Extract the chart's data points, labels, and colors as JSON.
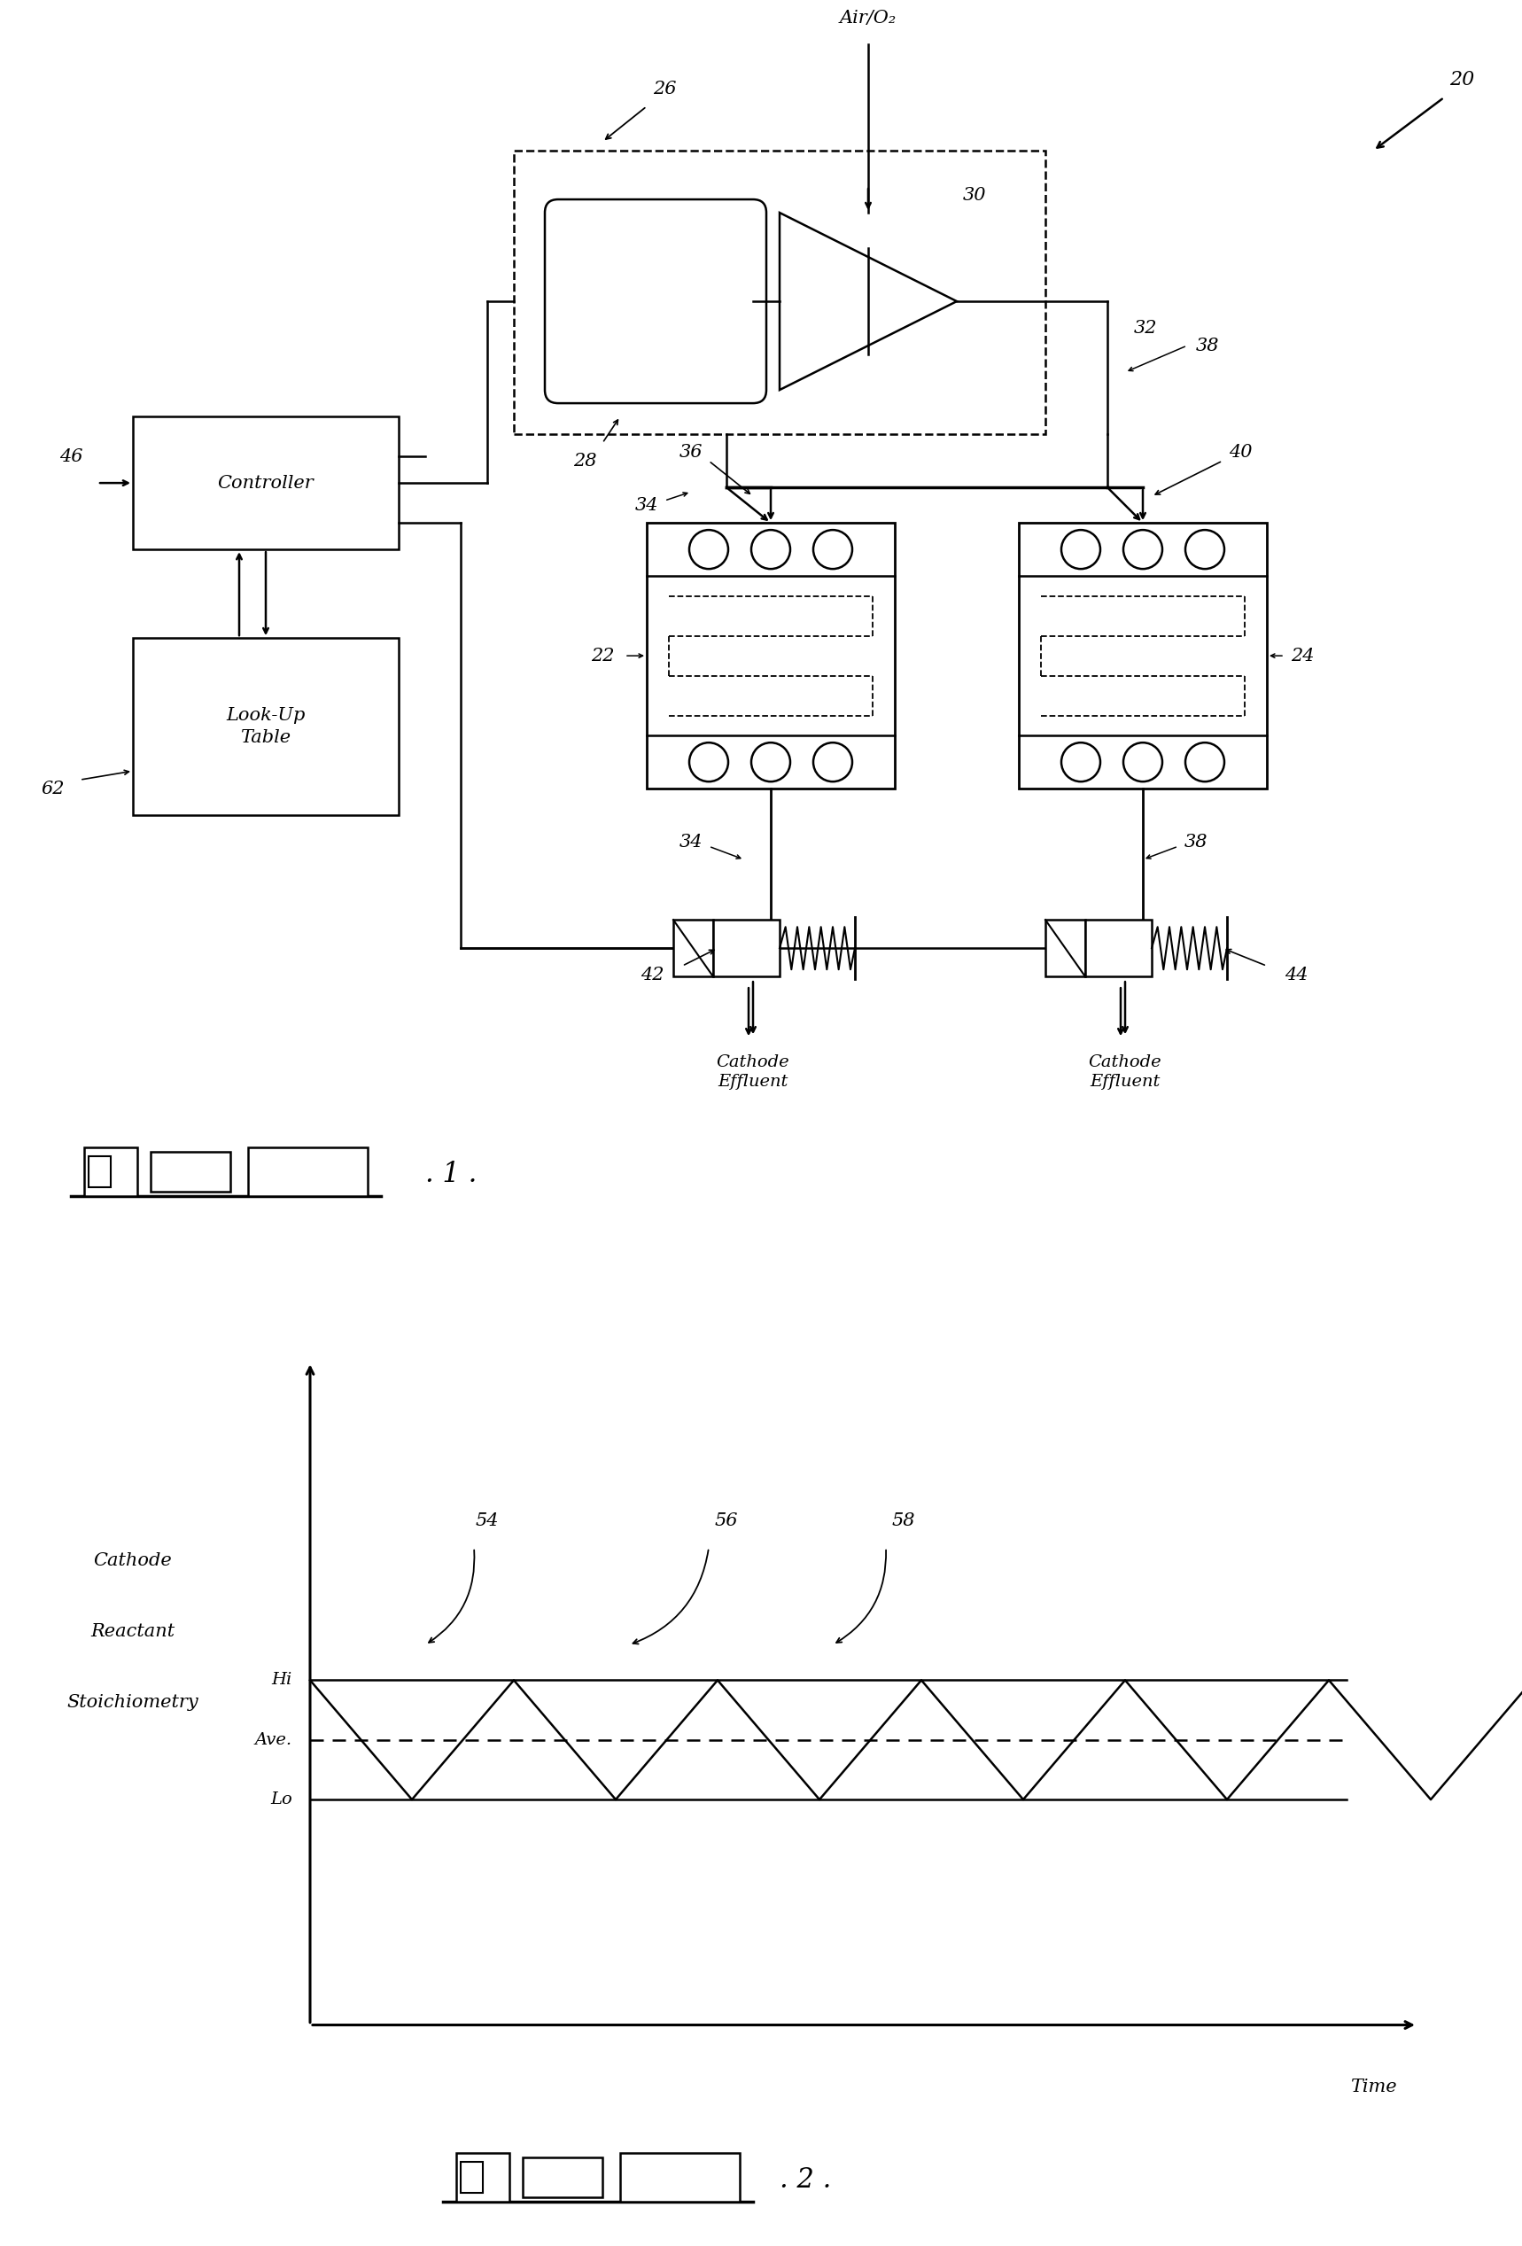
{
  "fig_width": 17.18,
  "fig_height": 25.35,
  "bg_color": "#ffffff",
  "line_color": "#000000",
  "diagram1": {
    "label_20": "20",
    "label_22": "22",
    "label_24": "24",
    "label_26": "26",
    "label_28": "28",
    "label_30": "30",
    "label_32": "32",
    "label_34": "34",
    "label_36": "36",
    "label_38": "38",
    "label_40": "40",
    "label_42": "42",
    "label_44": "44",
    "label_46": "46",
    "label_62": "62",
    "air_label": "Air/O₂",
    "cathode_effluent": "Cathode\nEffluent",
    "controller_label": "Controller",
    "lookup_label": "Look-Up\nTable"
  },
  "diagram2": {
    "ylabel_line1": "Cathode",
    "ylabel_line2": "Reactant",
    "ylabel_line3": "Stoichiometry",
    "xlabel": "Time",
    "hi_label": "Hi",
    "ave_label": "Ave.",
    "lo_label": "Lo",
    "label_54": "54",
    "label_56": "56",
    "label_58": "58"
  }
}
